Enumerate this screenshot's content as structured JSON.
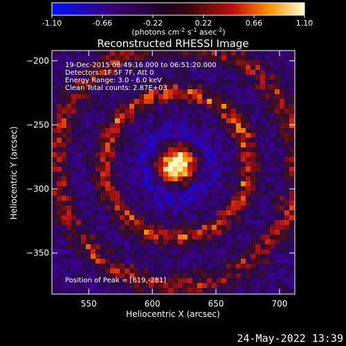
{
  "colorbar": {
    "tick_labels": [
      "-1.10",
      "-0.66",
      "-0.22",
      "0.22",
      "0.66",
      "1.10"
    ],
    "ticks": [
      -1.1,
      -0.66,
      -0.22,
      0.22,
      0.66,
      1.1
    ],
    "range": [
      -1.1,
      1.1
    ],
    "units_label": "(photons cm",
    "units_exp1": "-2",
    "units_mid": " s",
    "units_exp2": "-1",
    "units_mid2": " asec",
    "units_exp3": "-2",
    "units_end": ")"
  },
  "chart_data": {
    "type": "heatmap",
    "title": "Reconstructed RHESSI Image",
    "xlabel": "Heliocentric X (arcsec)",
    "ylabel": "Heliocentric Y (arcsec)",
    "xlim": [
      521,
      712
    ],
    "ylim": [
      -382,
      -192
    ],
    "xticks": [
      550,
      600,
      650,
      700
    ],
    "yticks": [
      -200,
      -250,
      -300,
      -350
    ],
    "xtick_labels": [
      "550",
      "600",
      "650",
      "700"
    ],
    "ytick_labels": [
      "−200",
      "−250",
      "−300",
      "−350"
    ],
    "grid": false,
    "annotations": [
      "19-Dec-2015 06:49:16.000 to 06:51:20.000",
      "Detectors: 1F 5F 7F, Att 0",
      "Energy Range: 3.0 - 6.0 keV",
      "Clean     Total counts: 2.87E+03"
    ],
    "peak_label": "Position of Peak = [619,-281]",
    "peak": [
      619,
      -281
    ]
  },
  "timestamp": "24-May-2022 13:39"
}
